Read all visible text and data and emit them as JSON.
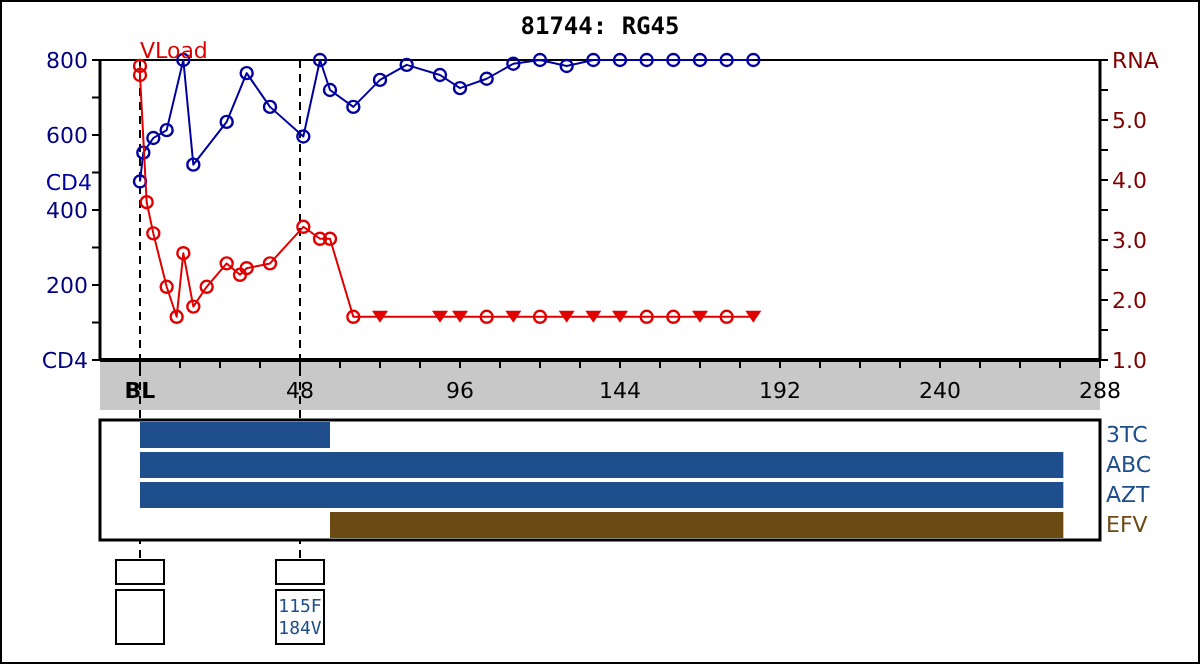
{
  "chart_data": [
    {
      "type": "line",
      "title": "81744: RG45",
      "xlim": [
        -12,
        288
      ],
      "xticks": [
        {
          "value": 0,
          "label": "BL"
        },
        {
          "value": 12,
          "label": null
        },
        {
          "value": 24,
          "label": null
        },
        {
          "value": 36,
          "label": null
        },
        48,
        {
          "value": 60,
          "label": null
        },
        {
          "value": 72,
          "label": null
        },
        {
          "value": 84,
          "label": null
        },
        96,
        {
          "value": 108,
          "label": null
        },
        {
          "value": 120,
          "label": null
        },
        {
          "value": 132,
          "label": null
        },
        144,
        {
          "value": 156,
          "label": null
        },
        {
          "value": 168,
          "label": null
        },
        {
          "value": 180,
          "label": null
        },
        192,
        {
          "value": 204,
          "label": null
        },
        {
          "value": 216,
          "label": null
        },
        {
          "value": 228,
          "label": null
        },
        240,
        {
          "value": 252,
          "label": null
        },
        {
          "value": 264,
          "label": null
        },
        {
          "value": 276,
          "label": null
        },
        288
      ],
      "ylim": [
        0,
        800
      ],
      "yticks": [
        {
          "value": 0,
          "label": "CD4"
        },
        {
          "value": 100,
          "label": null
        },
        200,
        {
          "value": 300,
          "label": null
        },
        400,
        {
          "value": 500,
          "label": null
        },
        600,
        {
          "value": 700,
          "label": null
        },
        800
      ],
      "y2lim": [
        1,
        6
      ],
      "y2ticks": [
        {
          "value": 1,
          "label": "1.0"
        },
        {
          "value": 1.5,
          "label": null
        },
        {
          "value": 2,
          "label": "2.0"
        },
        {
          "value": 2.5,
          "label": null
        },
        {
          "value": 3,
          "label": "3.0"
        },
        {
          "value": 3.5,
          "label": null
        },
        {
          "value": 4,
          "label": "4.0"
        },
        {
          "value": 4.5,
          "label": null
        },
        {
          "value": 5,
          "label": "5.0"
        },
        {
          "value": 5.5,
          "label": null
        },
        {
          "value": 6,
          "label": "RNA"
        }
      ],
      "series": [
        {
          "name": "CD4",
          "color": "#0000a0",
          "marker": "circle",
          "x": [
            0,
            1,
            4,
            8,
            13,
            16,
            26,
            32,
            39,
            49,
            54,
            57,
            64,
            72,
            80,
            90,
            96,
            104,
            112,
            120,
            128,
            136,
            144,
            152,
            160,
            168,
            176,
            184
          ],
          "values": [
            476,
            553,
            592,
            613,
            800,
            521,
            635,
            765,
            675,
            596,
            800,
            720,
            675,
            747,
            787,
            760,
            725,
            750,
            790,
            800,
            784,
            800,
            800,
            800,
            800,
            800,
            800,
            800
          ]
        },
        {
          "name": "VLoad",
          "color": "#e00000",
          "axis": "y2",
          "marker": "none",
          "x": [
            0,
            0,
            2,
            4,
            8,
            11,
            13,
            16,
            20,
            26,
            30,
            32,
            39,
            49,
            54,
            57,
            64,
            72,
            90,
            96,
            104,
            112,
            120,
            128,
            136,
            144,
            152,
            160,
            168,
            176,
            184
          ],
          "values": [
            5.9,
            5.75,
            3.63,
            3.11,
            2.22,
            1.72,
            2.78,
            1.89,
            2.22,
            2.61,
            2.42,
            2.53,
            2.61,
            3.22,
            3.02,
            3.02,
            1.72,
            1.72,
            1.72,
            1.72,
            1.72,
            1.72,
            1.72,
            1.72,
            1.72,
            1.72,
            1.72,
            1.72,
            1.72,
            1.72,
            1.72
          ]
        },
        {
          "type": "scatter",
          "color": "#e00000",
          "axis": "y2",
          "marker": "circle",
          "x": [
            0,
            0,
            2,
            4,
            8,
            11,
            13,
            16,
            20,
            26,
            30,
            32,
            39,
            49,
            54,
            57,
            64,
            104,
            120,
            152,
            160,
            176
          ],
          "values": [
            5.9,
            5.75,
            3.63,
            3.11,
            2.22,
            1.72,
            2.78,
            1.89,
            2.22,
            2.61,
            2.42,
            2.53,
            2.61,
            3.22,
            3.02,
            3.02,
            1.72,
            1.72,
            1.72,
            1.72,
            1.72,
            1.72
          ]
        },
        {
          "type": "scatter",
          "color": "#e00000",
          "axis": "y2",
          "marker": "triangle",
          "x": [
            72,
            90,
            96,
            112,
            128,
            136,
            144,
            168,
            184
          ],
          "values": [
            1.72,
            1.72,
            1.72,
            1.72,
            1.72,
            1.72,
            1.72,
            1.72,
            1.72
          ]
        }
      ],
      "ref_lines": [
        {
          "axis": "x",
          "value": 0,
          "line_style": "dashed",
          "color": "#000000"
        },
        {
          "axis": "x",
          "value": 48,
          "line_style": "dashed",
          "color": "#000000"
        }
      ]
    },
    {
      "type": "bar",
      "orientation": "horizontal",
      "categories": [
        "3TC",
        "ABC",
        "AZT",
        "EFV"
      ],
      "base": [
        0,
        0,
        0,
        57
      ],
      "values": [
        57,
        277,
        277,
        220
      ],
      "colors": [
        "#1f4e8c",
        "#1f4e8c",
        "#1f4e8c",
        "#6b4a14"
      ],
      "xlim": [
        -12,
        288
      ],
      "tick_labels": "y",
      "annotations": [
        "115F 184V"
      ]
    }
  ]
}
